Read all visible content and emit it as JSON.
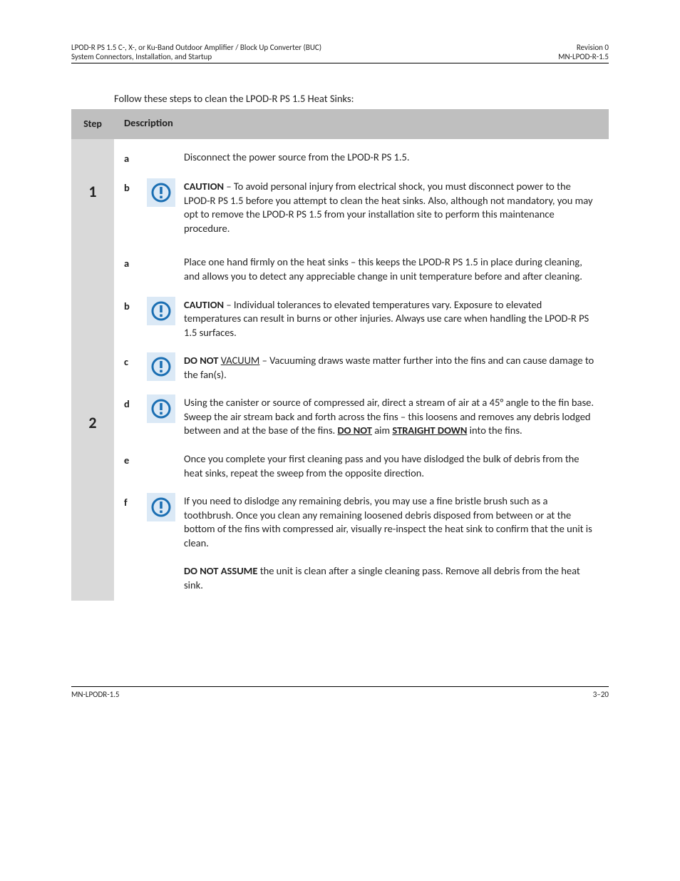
{
  "header": {
    "left_line1": "LPOD-R PS 1.5 C-, X-, or Ku-Band Outdoor Amplifier / Block Up Converter (BUC)",
    "left_line2": "System Connectors, Installation, and Startup",
    "right_line1": "Revision 0",
    "right_line2": "MN-LPOD-R-1.5"
  },
  "intro": "Follow these steps to clean the LPOD-R PS 1.5 Heat Sinks:",
  "table_headers": {
    "col1": "Step",
    "col2": "Description"
  },
  "steps": [
    {
      "num": "1",
      "subs": [
        {
          "letter": "a",
          "icon": false,
          "text": "Disconnect the power source from the LPOD-R PS 1.5."
        },
        {
          "letter": "b",
          "icon": true,
          "html": "<span class='b'>CAUTION</span> – To avoid personal injury from electrical shock, you must disconnect power to the LPOD-R PS 1.5 before you attempt to clean the heat sinks. Also, although not mandatory, you may opt to remove the LPOD-R PS 1.5 from your installation site to perform this maintenance procedure."
        }
      ]
    },
    {
      "num": "2",
      "subs": [
        {
          "letter": "a",
          "icon": false,
          "text": "Place one hand firmly on the heat sinks – this keeps the LPOD-R PS 1.5 in place during cleaning, and allows you to detect any appreciable change in unit temperature before and after cleaning."
        },
        {
          "letter": "b",
          "icon": true,
          "html": "<span class='b'>CAUTION</span> – Individual tolerances to elevated temperatures vary. Exposure to elevated temperatures can result in burns or other injuries. Always use care when handling the LPOD-R PS 1.5 surfaces."
        },
        {
          "letter": "c",
          "icon": true,
          "html": "<span class='b'>DO NOT</span> <span class='u'>VACUUM</span> – Vacuuming draws waste matter further into the fins and can cause damage to the fan(s)."
        },
        {
          "letter": "d",
          "icon": true,
          "html": "Using the canister or source of compressed air, direct a stream of air at a 45° angle to the fin base. Sweep the air stream back and forth across the fins – this loosens and removes any debris lodged between and at the base of the fins. <span class='b'><span class='u'>DO NOT</span></span> aim <span class='b'><span class='u'>STRAIGHT DOWN</span></span> into the fins."
        },
        {
          "letter": "e",
          "icon": false,
          "text": "Once you complete your first cleaning pass and you have dislodged the bulk of debris from the heat sinks, repeat the sweep from the opposite direction."
        },
        {
          "letter": "f",
          "icon": true,
          "html": "If you need to dislodge any remaining debris, you may use a fine bristle brush such as a toothbrush. Once you clean any remaining loosened debris disposed from between or at the bottom of the fins with compressed air, visually re-inspect the heat sink to confirm that the unit is clean.<br><br><span class='b'>DO NOT ASSUME</span> the unit is clean after a single cleaning pass. Remove all debris from the heat sink."
        }
      ]
    }
  ],
  "footer": {
    "left": "MN-LPODR-1.5",
    "right": "3–20"
  },
  "colors": {
    "icon_bg": "#dbe9f6",
    "icon_stroke": "#1b6fb3",
    "header_gray": "#bfbfbf",
    "cell_gray": "#d9d9d9"
  }
}
